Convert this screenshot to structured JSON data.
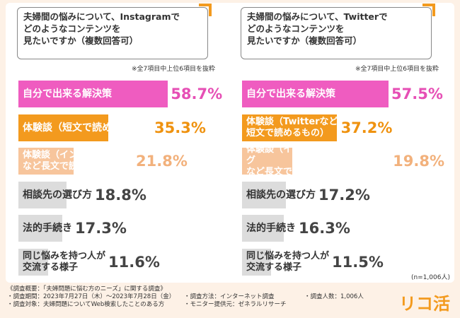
{
  "chart_data": [
    {
      "type": "bar",
      "orientation": "horizontal",
      "title": "夫婦間の悩みについて、Instagramで\nどのようなコンテンツを\n見たいですか（複数回答可）",
      "note": "※全7項目中上位6項目を抜粋",
      "categories": [
        "自分で出来る解決策",
        "体験談（短文で読めるもの）",
        "体験談（インタビュー記事\nなど長文で読むもの）",
        "相談先の選び方",
        "法的手続き",
        "同じ悩みを持つ人が\n交流する様子"
      ],
      "values": [
        58.7,
        35.3,
        21.8,
        18.8,
        17.3,
        11.6
      ],
      "value_labels": [
        "58.7%",
        "35.3%",
        "21.8%",
        "18.8%",
        "17.3%",
        "11.6%"
      ],
      "colors": [
        "#ef5cc0",
        "#f39a1e",
        "#f7c59c",
        "#dcdcdc",
        "#dcdcdc",
        "#dcdcdc"
      ],
      "label_colors": [
        "#ffffff",
        "#ffffff",
        "#ffffff",
        "#333333",
        "#333333",
        "#333333"
      ],
      "value_colors": [
        "#e64fb5",
        "#ef920f",
        "#f2b17c",
        "#444444",
        "#444444",
        "#444444"
      ]
    },
    {
      "type": "bar",
      "orientation": "horizontal",
      "title": "夫婦間の悩みについて、Twitterで\nどのようなコンテンツを\n見たいですか（複数回答可）",
      "note": "※全7項目中上位6項目を抜粋",
      "categories": [
        "自分で出来る解決策",
        "体験談（Twitterなど\n短文で読めるもの）",
        "体験談（インタビュー記事、ブログ\nなど長文で読むものへのリンク）",
        "相談先の選び方",
        "法的手続き",
        "同じ悩みを持つ人が\n交流する様子"
      ],
      "values": [
        57.5,
        37.2,
        19.8,
        17.2,
        16.3,
        11.5
      ],
      "value_labels": [
        "57.5%",
        "37.2%",
        "19.8%",
        "17.2%",
        "16.3%",
        "11.5%"
      ],
      "colors": [
        "#ef5cc0",
        "#f39a1e",
        "#f7c59c",
        "#dcdcdc",
        "#dcdcdc",
        "#dcdcdc"
      ],
      "label_colors": [
        "#ffffff",
        "#ffffff",
        "#ffffff",
        "#333333",
        "#333333",
        "#333333"
      ],
      "value_colors": [
        "#e64fb5",
        "#ef920f",
        "#f2b17c",
        "#444444",
        "#444444",
        "#444444"
      ]
    }
  ],
  "sample_size": "(n=1,006人)",
  "footer": {
    "heading": "《調査概要：「夫婦問題に悩む方のニーズ」に関する調査》",
    "items": [
      "・調査期間：2023年7月27日（木）〜2023年7月28日（金）",
      "・調査方法：インターネット調査",
      "・調査人数：1,006人",
      "・調査対象：夫婦問題についてWeb検索したことのある方",
      "・モニター提供元：ゼネラルリサーチ"
    ]
  },
  "logo": "リコ活"
}
